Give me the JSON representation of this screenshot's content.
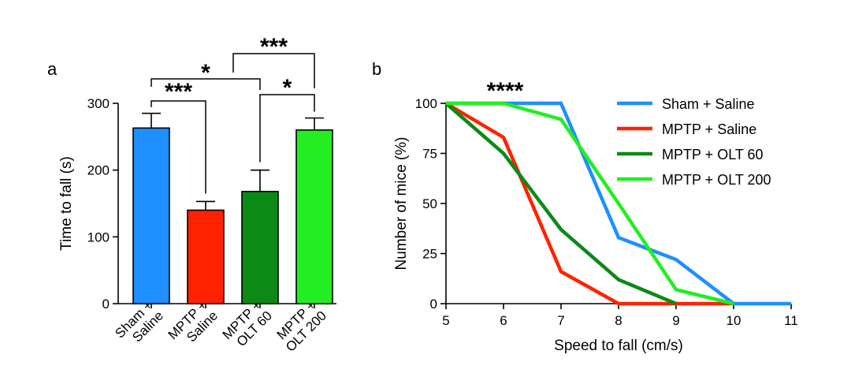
{
  "chart_data": [
    {
      "panel": "a",
      "type": "bar",
      "ylabel": "Time to fall (s)",
      "ylim": [
        0,
        300
      ],
      "yticks": [
        0,
        100,
        200,
        300
      ],
      "categories": [
        [
          "Sham +",
          "Saline"
        ],
        [
          "MPTP +",
          "Saline"
        ],
        [
          "MPTP +",
          "OLT 60"
        ],
        [
          "MPTP +",
          "OLT 200"
        ]
      ],
      "values": [
        263,
        140,
        168,
        260
      ],
      "errors": [
        22,
        13,
        32,
        18
      ],
      "colors": [
        "#1e8fff",
        "#ff2200",
        "#0b8a16",
        "#22ee22"
      ],
      "significance": [
        {
          "from": 0,
          "to": 1,
          "label": "***"
        },
        {
          "from": 0,
          "to": 2,
          "label": "*"
        },
        {
          "from": 1,
          "to": 3,
          "label": "***"
        },
        {
          "from": 2,
          "to": 3,
          "label": "*"
        }
      ]
    },
    {
      "panel": "b",
      "type": "line",
      "xlabel": "Speed to fall (cm/s)",
      "ylabel": "Number of mice (%)",
      "xlim": [
        5,
        11
      ],
      "ylim": [
        0,
        100
      ],
      "xticks": [
        5,
        6,
        7,
        8,
        9,
        10,
        11
      ],
      "yticks": [
        0,
        25,
        50,
        75,
        100
      ],
      "annotation": {
        "text": "****",
        "x": 6.0,
        "y": 100
      },
      "series": [
        {
          "name": "Sham + Saline",
          "color": "#1e8fff",
          "x": [
            5,
            6,
            7,
            8,
            9,
            10,
            11
          ],
          "y": [
            100,
            100,
            100,
            33,
            22,
            0,
            0
          ]
        },
        {
          "name": "MPTP + Saline",
          "color": "#ff2200",
          "x": [
            5,
            6,
            7,
            8,
            9,
            10
          ],
          "y": [
            100,
            83,
            16,
            0,
            0,
            0
          ]
        },
        {
          "name": "MPTP + OLT 60",
          "color": "#0b8a16",
          "x": [
            5,
            6,
            7,
            8,
            9
          ],
          "y": [
            100,
            75,
            37,
            12,
            0
          ]
        },
        {
          "name": "MPTP + OLT 200",
          "color": "#22ee22",
          "x": [
            5,
            6,
            7,
            8,
            9,
            10
          ],
          "y": [
            100,
            100,
            92,
            50,
            7,
            0
          ]
        }
      ]
    }
  ]
}
